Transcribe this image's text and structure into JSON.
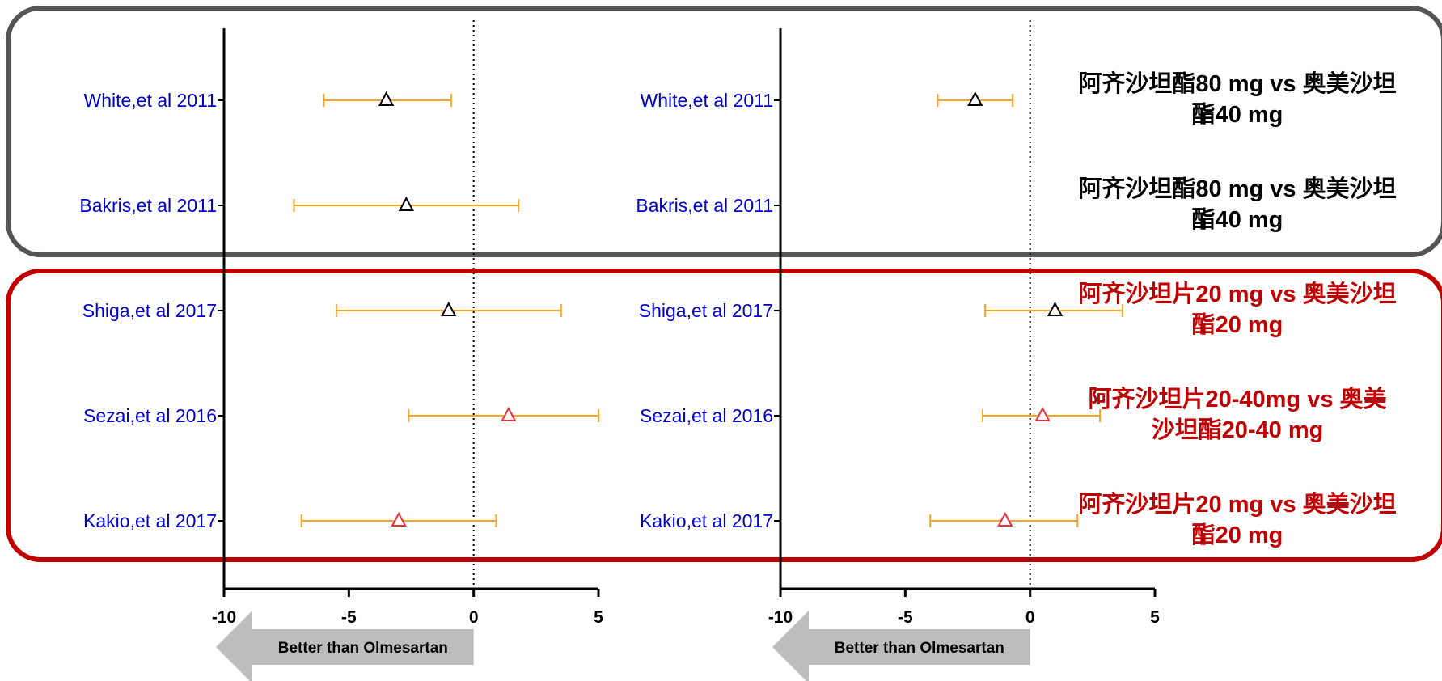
{
  "colors": {
    "group_gray": "#555555",
    "group_red": "#c00000",
    "study_label": "#0000cc",
    "ci_line": "#f5a623",
    "marker_black": "#000000",
    "marker_red": "#e8303a",
    "axis": "#000000",
    "arrow_fill": "#bdbdbd",
    "comparison_black": "#000000",
    "comparison_red": "#c00000"
  },
  "comparisons": [
    {
      "text_line1": "阿齐沙坦酯80 mg vs 奥美沙坦",
      "text_line2": "酯40 mg",
      "color": "black"
    },
    {
      "text_line1": "阿齐沙坦酯80 mg vs 奥美沙坦",
      "text_line2": "酯40 mg",
      "color": "black"
    },
    {
      "text_line1": "阿齐沙坦片20 mg vs 奥美沙坦",
      "text_line2": "酯20 mg",
      "color": "red"
    },
    {
      "text_line1": "阿齐沙坦片20-40mg vs 奥美",
      "text_line2": "沙坦酯20-40 mg",
      "color": "red"
    },
    {
      "text_line1": "阿齐沙坦片20 mg vs 奥美沙坦",
      "text_line2": "酯20 mg",
      "color": "red"
    }
  ],
  "chart_data": [
    {
      "type": "forest",
      "xlim": [
        -10,
        5
      ],
      "xticks": [
        "-10",
        "-5",
        "0",
        "5"
      ],
      "reference_line": 0,
      "arrow_label": "Better than Olmesartan",
      "studies": [
        "White,et al 2011",
        "Bakris,et al 2011",
        "Shiga,et al 2017",
        "Sezai,et al 2016",
        "Kakio,et al 2017"
      ],
      "estimates": [
        {
          "point": -3.5,
          "lower": -6.0,
          "upper": -0.9,
          "marker": "black"
        },
        {
          "point": -2.7,
          "lower": -7.2,
          "upper": 1.8,
          "marker": "black"
        },
        {
          "point": -1.0,
          "lower": -5.5,
          "upper": 3.5,
          "marker": "black"
        },
        {
          "point": 1.4,
          "lower": -2.6,
          "upper": 5.0,
          "marker": "red"
        },
        {
          "point": -3.0,
          "lower": -6.9,
          "upper": 0.9,
          "marker": "red"
        }
      ]
    },
    {
      "type": "forest",
      "xlim": [
        -10,
        5
      ],
      "xticks": [
        "-10",
        "-5",
        "0",
        "5"
      ],
      "reference_line": 0,
      "arrow_label": "Better than Olmesartan",
      "studies": [
        "White,et al 2011",
        "Bakris,et al 2011",
        "Shiga,et al 2017",
        "Sezai,et al 2016",
        "Kakio,et al 2017"
      ],
      "estimates": [
        {
          "point": -2.2,
          "lower": -3.7,
          "upper": -0.7,
          "marker": "black"
        },
        null,
        {
          "point": 1.0,
          "lower": -1.8,
          "upper": 3.7,
          "marker": "black"
        },
        {
          "point": 0.5,
          "lower": -1.9,
          "upper": 2.8,
          "marker": "red"
        },
        {
          "point": -1.0,
          "lower": -4.0,
          "upper": 1.9,
          "marker": "red"
        }
      ]
    }
  ]
}
